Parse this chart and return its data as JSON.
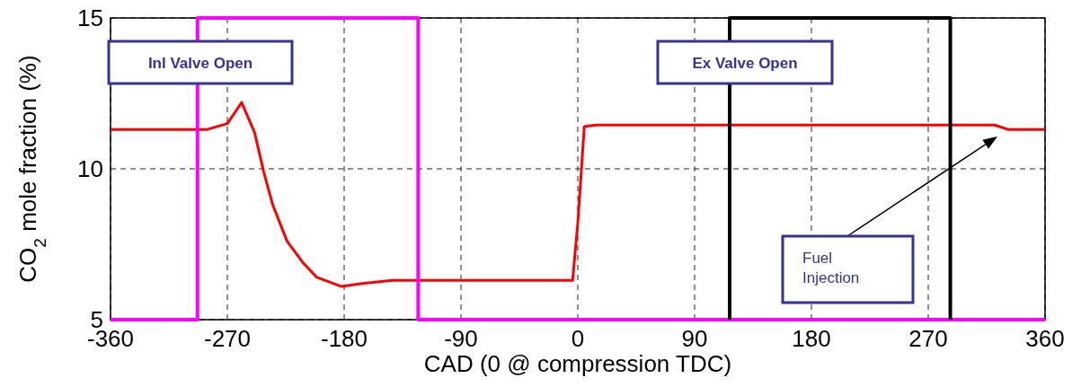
{
  "chart_data": {
    "type": "line",
    "xlabel": "CAD (0 @ compression TDC)",
    "ylabel": "CO$_{2}$ mole fraction (%)",
    "xlim": [
      -360,
      360
    ],
    "xticks": [
      -360,
      -270,
      -180,
      -90,
      0,
      90,
      180,
      270,
      360
    ],
    "ylim": [
      5,
      15
    ],
    "yticks": [
      5,
      10,
      15
    ],
    "grid": true,
    "series": [
      {
        "color": "#ff0000",
        "x": [
          -360,
          -286,
          -270,
          -259,
          -249,
          -242,
          -235,
          -224,
          -212,
          -201,
          -182,
          -166,
          -143,
          -130,
          -4,
          0,
          3,
          5,
          14,
          321,
          332,
          360
        ],
        "values": [
          11.3,
          11.3,
          11.5,
          12.2,
          11.2,
          9.9,
          8.8,
          7.6,
          6.9,
          6.4,
          6.1,
          6.2,
          6.3,
          6.3,
          6.3,
          8.2,
          10.1,
          11.4,
          11.45,
          11.45,
          11.3,
          11.3
        ]
      },
      {
        "color": "#ff00ff",
        "x": [
          -360,
          -293,
          -293,
          -123,
          -123,
          360
        ],
        "values": [
          5,
          5,
          15,
          15,
          5,
          5
        ]
      },
      {
        "color": "#000000",
        "x": [
          117,
          117,
          287,
          287
        ],
        "values": [
          5,
          15,
          15,
          5
        ]
      }
    ],
    "annotations": [
      "Inl Valve Open",
      "Ex Valve Open",
      "Fuel Injection"
    ]
  }
}
